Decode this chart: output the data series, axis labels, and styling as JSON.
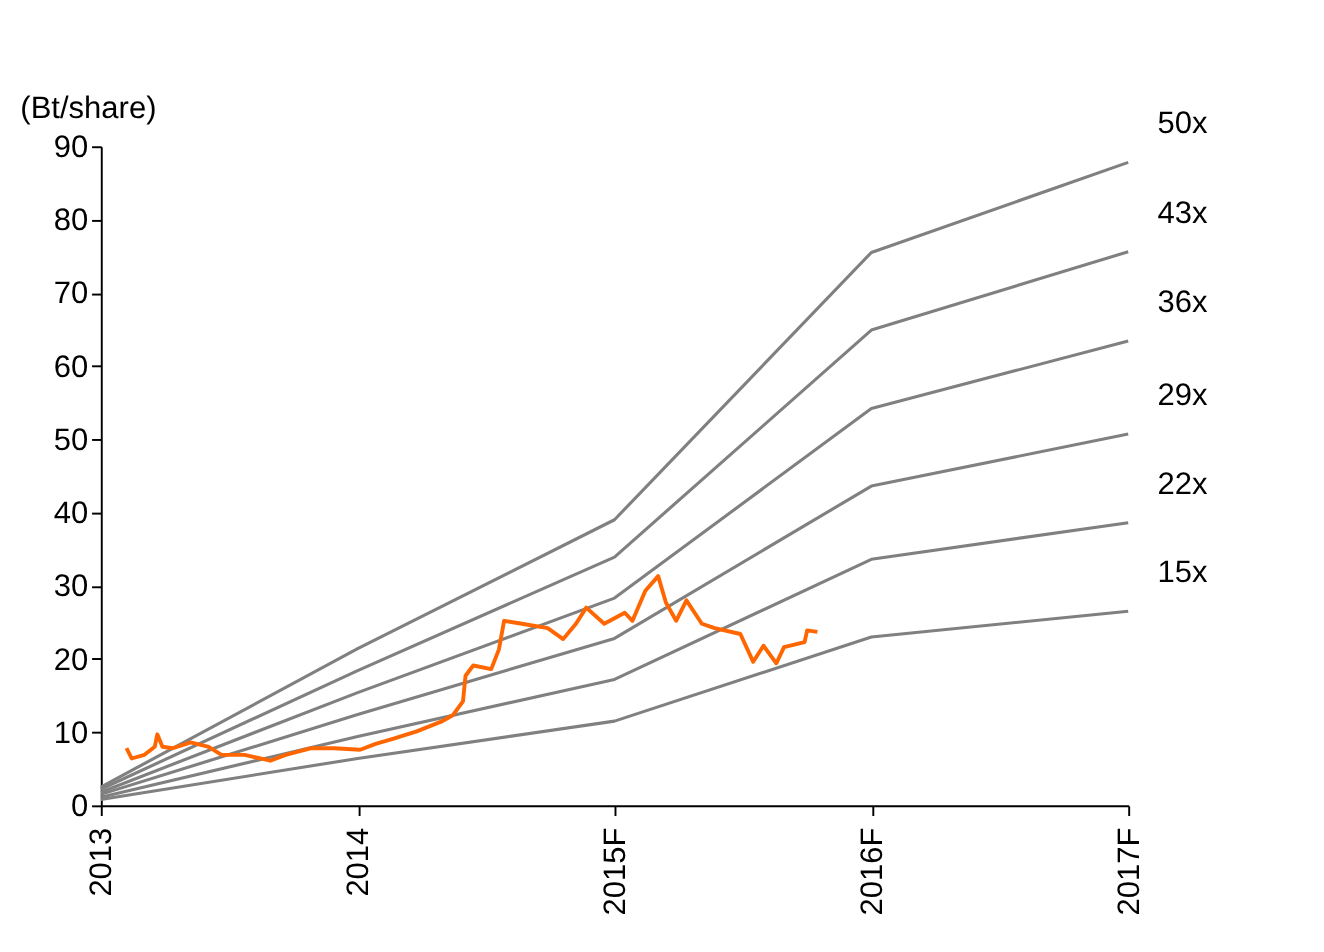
{
  "chart_data": {
    "type": "line",
    "ylabel": "(Bt/share)",
    "x": [
      2013,
      2014,
      2015,
      2016,
      2017
    ],
    "xlim": [
      2013,
      2017
    ],
    "xticks": [
      2013,
      2014,
      {
        "value": 2015,
        "label": "2015F"
      },
      {
        "value": 2016,
        "label": "2016F"
      },
      {
        "value": 2017,
        "label": "2017F"
      }
    ],
    "ylim": [
      0,
      90
    ],
    "yticks": [
      0,
      10,
      20,
      30,
      40,
      50,
      60,
      70,
      80,
      90
    ],
    "grid": false,
    "legend": false,
    "marker": "none",
    "line_style": "solid",
    "series": [
      {
        "name": "50x",
        "color": "#808080",
        "values": [
          2.5,
          21.4,
          39,
          75.5,
          87.8
        ]
      },
      {
        "name": "43x",
        "color": "#808080",
        "values": [
          2.2,
          18.4,
          33.9,
          64.9,
          75.6
        ]
      },
      {
        "name": "36x",
        "color": "#808080",
        "values": [
          1.8,
          15.4,
          28.3,
          54.2,
          63.4
        ]
      },
      {
        "name": "29x",
        "color": "#808080",
        "values": [
          1.5,
          12.4,
          22.8,
          43.6,
          50.7
        ]
      },
      {
        "name": "22x",
        "color": "#808080",
        "values": [
          1.1,
          9.4,
          17.2,
          33.6,
          38.6
        ]
      },
      {
        "name": "15x",
        "color": "#808080",
        "values": [
          0.8,
          6.4,
          11.5,
          23,
          26.5
        ]
      },
      {
        "color": "#ff6600",
        "x": [
          2013.1,
          2013.12,
          2013.17,
          2013.21,
          2013.22,
          2013.24,
          2013.28,
          2013.35,
          2013.42,
          2013.47,
          2013.56,
          2013.66,
          2013.72,
          2013.82,
          2013.91,
          2014.01,
          2014.07,
          2014.14,
          2014.23,
          2014.33,
          2014.37,
          2014.41,
          2014.42,
          2014.45,
          2014.52,
          2014.55,
          2014.57,
          2014.64,
          2014.74,
          2014.8,
          2014.85,
          2014.89,
          2014.96,
          2015.04,
          2015.07,
          2015.12,
          2015.17,
          2015.2,
          2015.24,
          2015.28,
          2015.34,
          2015.39,
          2015.49,
          2015.54,
          2015.58,
          2015.63,
          2015.66,
          2015.74,
          2015.75,
          2015.79
        ],
        "values": [
          7.8,
          6.4,
          6.9,
          8.0,
          9.7,
          8.0,
          7.8,
          8.6,
          8.0,
          6.9,
          6.9,
          6.1,
          6.9,
          7.8,
          7.8,
          7.6,
          8.4,
          9.1,
          10.1,
          11.5,
          12.3,
          14.2,
          17.7,
          19.1,
          18.6,
          21.3,
          25.2,
          24.8,
          24.2,
          22.7,
          24.8,
          27.0,
          24.8,
          26.3,
          25.2,
          29.3,
          31.3,
          27.7,
          25.2,
          28.0,
          24.8,
          24.2,
          23.4,
          19.6,
          21.8,
          19.4,
          21.6,
          22.3,
          23.9,
          23.7
        ]
      }
    ]
  }
}
